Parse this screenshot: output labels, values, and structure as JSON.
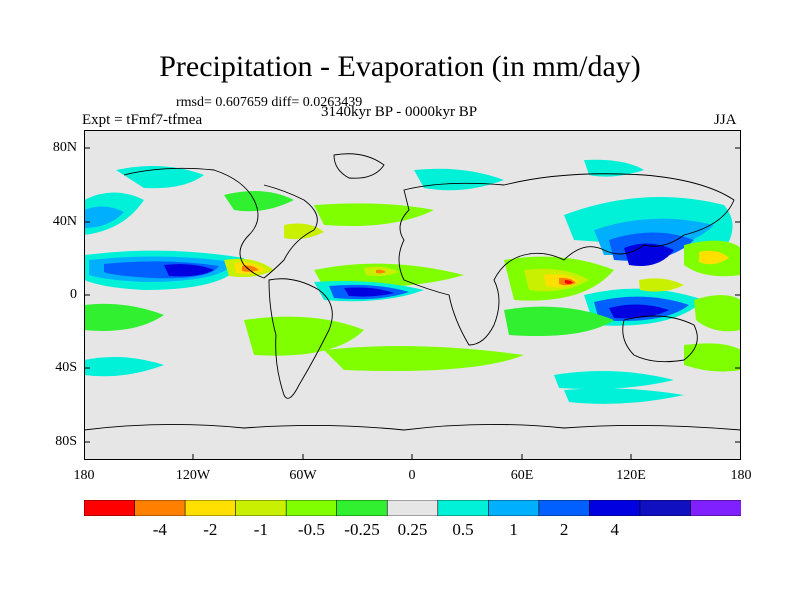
{
  "title": "Precipitation - Evaporation (in mm/day)",
  "stats": "rmsd= 0.607659 diff= 0.0263439",
  "expt": "Expt = tFmf7-tfmea",
  "period": "3140kyr BP - 0000kyr BP",
  "season": "JJA",
  "map": {
    "lat_labels": [
      "80N",
      "40N",
      "0",
      "40S",
      "80S"
    ],
    "lon_labels": [
      "180",
      "120W",
      "60W",
      "0",
      "60E",
      "120E",
      "180"
    ],
    "background": "#e6e6e6"
  },
  "colorbar": {
    "colors": [
      "#ff0000",
      "#ff8000",
      "#ffe000",
      "#c8f000",
      "#80ff00",
      "#30f030",
      "#e6e6e6",
      "#00f0d8",
      "#00b0ff",
      "#0060ff",
      "#0000e0",
      "#1010c0",
      "#8020ff"
    ],
    "labels": [
      "-4",
      "-2",
      "-1",
      "-0.5",
      "-0.25",
      "0.25",
      "0.5",
      "1",
      "2",
      "4"
    ]
  }
}
